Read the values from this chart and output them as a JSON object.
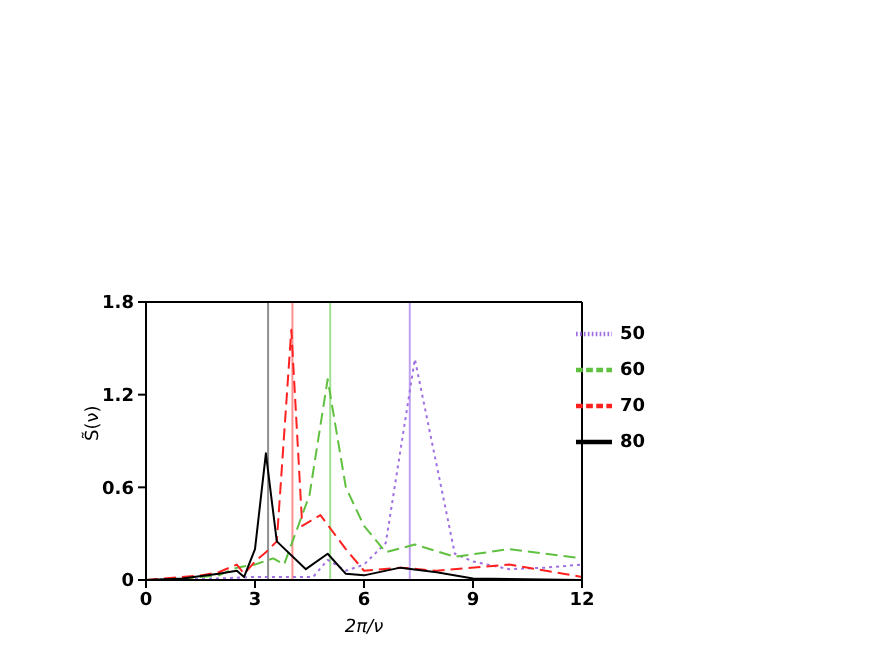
{
  "chart_data": {
    "type": "line",
    "xlabel": "2π/ν",
    "ylabel": "S̃(ν)",
    "xlim": [
      0,
      12
    ],
    "xticks": [
      0,
      3,
      6,
      9,
      12
    ],
    "ylim": [
      0,
      1.8
    ],
    "yticks": [
      0,
      0.6,
      1.2,
      1.8
    ],
    "legend": "top right",
    "marker": "none",
    "series": [
      {
        "name": "50",
        "color": "#a070e0",
        "line_style": "dotted",
        "x": [
          0,
          2,
          3,
          4,
          4.6,
          5.0,
          5.5,
          6.0,
          6.6,
          7.4,
          8.5,
          9,
          10,
          11,
          12
        ],
        "values": [
          0,
          0.01,
          0.02,
          0.02,
          0.02,
          0.13,
          0.06,
          0.1,
          0.24,
          1.43,
          0.17,
          0.12,
          0.07,
          0.08,
          0.1
        ]
      },
      {
        "name": "60",
        "color": "#60c040",
        "line_style": "dashed",
        "x": [
          0,
          1,
          2,
          2.5,
          3,
          3.5,
          3.8,
          4.5,
          5.0,
          5.5,
          6,
          6.6,
          7.4,
          8.5,
          10,
          12
        ],
        "values": [
          0,
          0.01,
          0.03,
          0.08,
          0.1,
          0.14,
          0.1,
          0.55,
          1.3,
          0.6,
          0.35,
          0.18,
          0.23,
          0.15,
          0.2,
          0.14
        ]
      },
      {
        "name": "70",
        "color": "#ff2020",
        "line_style": "dashed",
        "x": [
          0,
          1.5,
          2,
          2.5,
          2.7,
          3,
          3.3,
          3.6,
          4.0,
          4.3,
          4.8,
          5.5,
          6,
          7,
          8,
          10,
          12
        ],
        "values": [
          0,
          0.03,
          0.05,
          0.1,
          0.04,
          0.12,
          0.18,
          0.25,
          1.62,
          0.35,
          0.42,
          0.2,
          0.06,
          0.08,
          0.06,
          0.1,
          0.02
        ]
      },
      {
        "name": "80",
        "color": "#000000",
        "line_style": "solid",
        "x": [
          0,
          1,
          2,
          2.5,
          2.7,
          3,
          3.3,
          3.6,
          4.4,
          5,
          5.5,
          6,
          7,
          8,
          9,
          12
        ],
        "values": [
          0,
          0.01,
          0.04,
          0.06,
          0.02,
          0.2,
          0.82,
          0.25,
          0.07,
          0.17,
          0.04,
          0.03,
          0.08,
          0.05,
          0.01,
          0
        ]
      }
    ],
    "ref_lines": [
      {
        "axis": "x",
        "value": 3.36,
        "color": "#909090"
      },
      {
        "axis": "x",
        "value": 4.03,
        "color": "#ff9090"
      },
      {
        "axis": "x",
        "value": 5.07,
        "color": "#a0e090"
      },
      {
        "axis": "x",
        "value": 7.26,
        "color": "#c0a0f0"
      }
    ]
  }
}
